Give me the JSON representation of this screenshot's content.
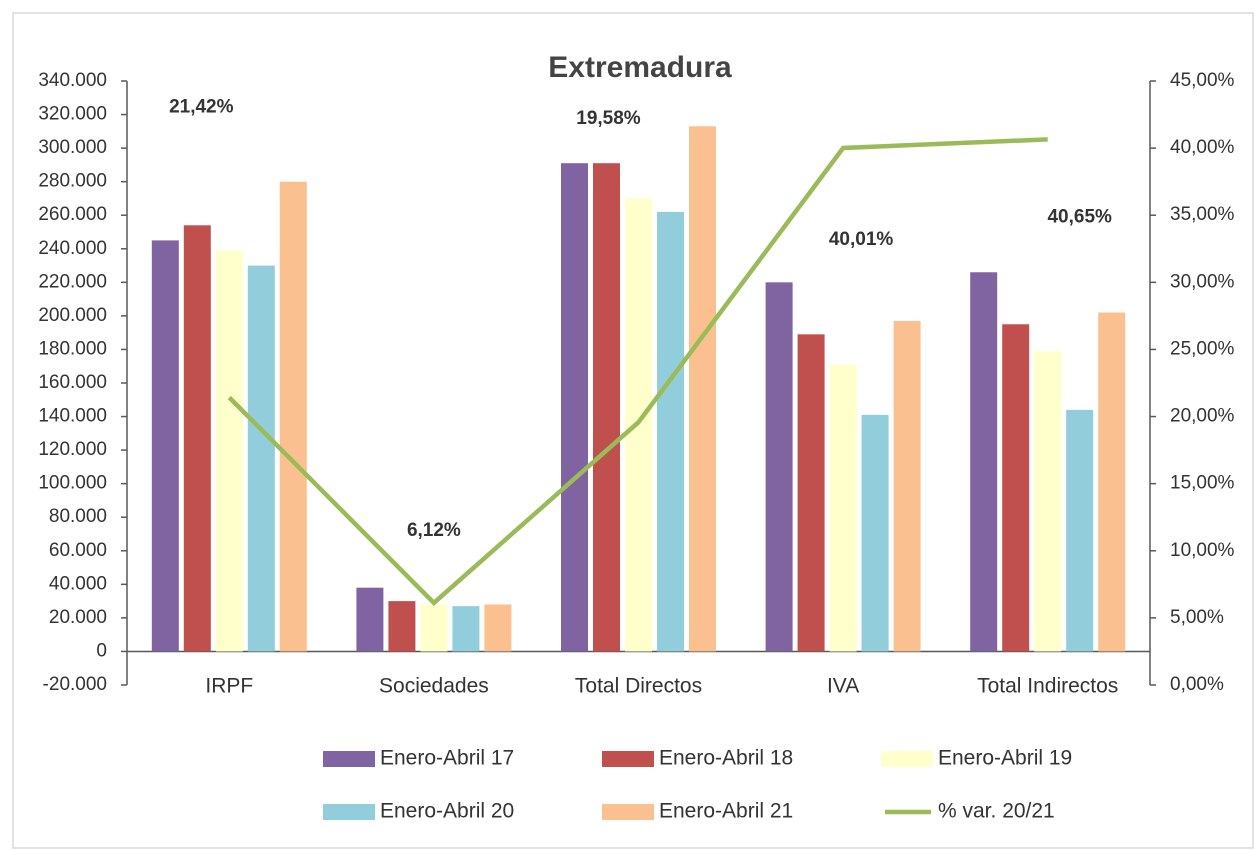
{
  "chart_data": {
    "type": "bar",
    "title": "Extremadura",
    "categories": [
      "IRPF",
      "Sociedades",
      "Total Directos",
      "IVA",
      "Total Indirectos"
    ],
    "series": [
      {
        "name": "Enero-Abril 17",
        "color": "#8064a2",
        "values": [
          245000,
          38000,
          291000,
          220000,
          226000
        ]
      },
      {
        "name": "Enero-Abril 18",
        "color": "#c0504d",
        "values": [
          254000,
          30000,
          291000,
          189000,
          195000
        ]
      },
      {
        "name": "Enero-Abril 19",
        "color": "#ffffcc",
        "values": [
          239000,
          28000,
          270000,
          171000,
          179000
        ]
      },
      {
        "name": "Enero-Abril 20",
        "color": "#92cddc",
        "values": [
          230000,
          27000,
          262000,
          141000,
          144000
        ]
      },
      {
        "name": "Enero-Abril 21",
        "color": "#fac090",
        "values": [
          280000,
          28000,
          313000,
          197000,
          202000
        ]
      },
      {
        "name": "% var. 20/21",
        "color": "#9bbb59",
        "type": "line",
        "axis": "y2",
        "values": [
          21.42,
          6.12,
          19.58,
          40.01,
          40.65
        ],
        "value_labels": [
          "21,42%",
          "6,12%",
          "19,58%",
          "40,01%",
          "40,65%"
        ]
      }
    ],
    "ylim": [
      -20000,
      340000
    ],
    "yticks": [
      {
        "value": -20000,
        "label": "-20.000"
      },
      0,
      {
        "value": 20000,
        "label": "20.000"
      },
      {
        "value": 40000,
        "label": "40.000"
      },
      {
        "value": 60000,
        "label": "60.000"
      },
      {
        "value": 80000,
        "label": "80.000"
      },
      {
        "value": 100000,
        "label": "100.000"
      },
      {
        "value": 120000,
        "label": "120.000"
      },
      {
        "value": 140000,
        "label": "140.000"
      },
      {
        "value": 160000,
        "label": "160.000"
      },
      {
        "value": 180000,
        "label": "180.000"
      },
      {
        "value": 200000,
        "label": "200.000"
      },
      {
        "value": 220000,
        "label": "220.000"
      },
      {
        "value": 240000,
        "label": "240.000"
      },
      {
        "value": 260000,
        "label": "260.000"
      },
      {
        "value": 280000,
        "label": "280.000"
      },
      {
        "value": 300000,
        "label": "300.000"
      },
      {
        "value": 320000,
        "label": "320.000"
      },
      {
        "value": 340000,
        "label": "340.000"
      }
    ],
    "y2lim": [
      0,
      45
    ],
    "y2ticks": [
      {
        "value": 0,
        "label": "0,00%"
      },
      {
        "value": 5,
        "label": "5,00%"
      },
      {
        "value": 10,
        "label": "10,00%"
      },
      {
        "value": 15,
        "label": "15,00%"
      },
      {
        "value": 20,
        "label": "20,00%"
      },
      {
        "value": 25,
        "label": "25,00%"
      },
      {
        "value": 30,
        "label": "30,00%"
      },
      {
        "value": 35,
        "label": "35,00%"
      },
      {
        "value": 40,
        "label": "40,00%"
      },
      {
        "value": 45,
        "label": "45,00%"
      }
    ],
    "grid": false,
    "legend": "bottom"
  }
}
